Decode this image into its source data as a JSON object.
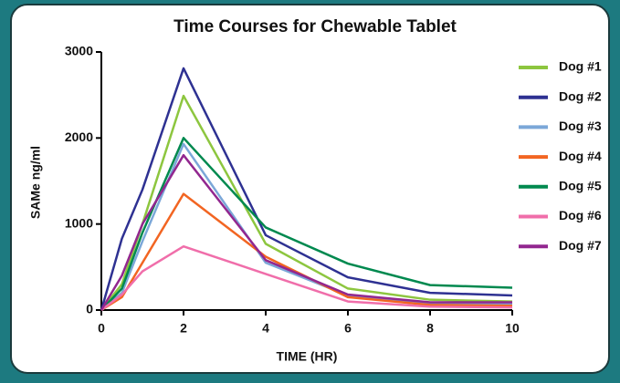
{
  "chart_data": {
    "type": "line",
    "title": "Time Courses for Chewable Tablet",
    "x_label": "TIME (HR)",
    "y_label": "SAMe ng/ml",
    "x": [
      0,
      0.5,
      1,
      2,
      4,
      6,
      8,
      10
    ],
    "xlim": [
      0,
      10
    ],
    "xticks": [
      0,
      2,
      4,
      6,
      8,
      10
    ],
    "ylim": [
      0,
      3000
    ],
    "yticks": [
      0,
      1000,
      2000,
      3000
    ],
    "legend": "right",
    "series": [
      {
        "name": "Dog #1",
        "color": "#8dc63f",
        "values": [
          0,
          300,
          1000,
          2490,
          770,
          250,
          120,
          100
        ]
      },
      {
        "name": "Dog #2",
        "color": "#2e3192",
        "values": [
          0,
          830,
          1400,
          2810,
          870,
          380,
          200,
          170
        ]
      },
      {
        "name": "Dog #3",
        "color": "#7ba7d8",
        "values": [
          0,
          200,
          800,
          1930,
          550,
          170,
          80,
          70
        ]
      },
      {
        "name": "Dog #4",
        "color": "#f26522",
        "values": [
          0,
          150,
          550,
          1350,
          620,
          150,
          60,
          50
        ]
      },
      {
        "name": "Dog #5",
        "color": "#00894f",
        "values": [
          0,
          250,
          900,
          2000,
          960,
          540,
          290,
          260
        ]
      },
      {
        "name": "Dog #6",
        "color": "#f06eaa",
        "values": [
          0,
          180,
          450,
          740,
          420,
          100,
          40,
          30
        ]
      },
      {
        "name": "Dog #7",
        "color": "#92278f",
        "values": [
          0,
          400,
          1000,
          1800,
          580,
          180,
          90,
          90
        ]
      }
    ]
  }
}
